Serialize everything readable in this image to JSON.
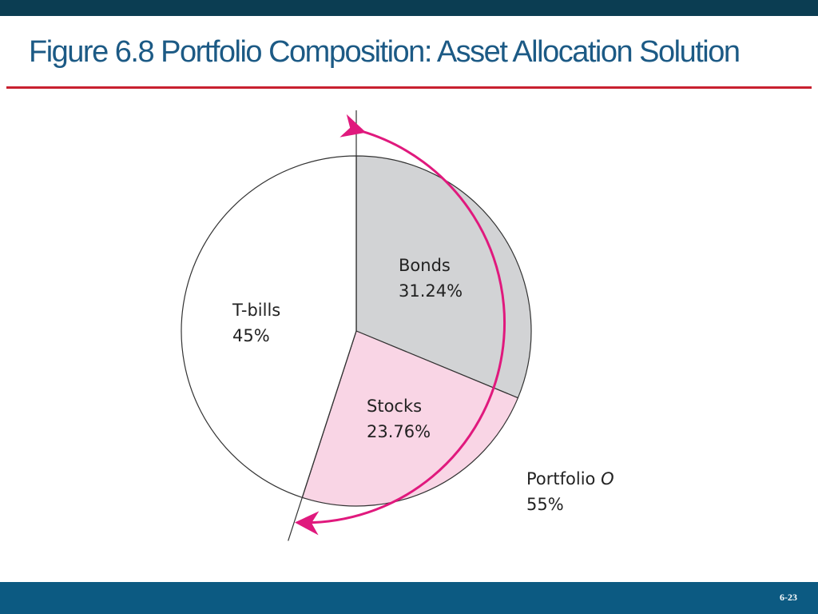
{
  "slide": {
    "title": "Figure 6.8 Portfolio Composition: Asset Allocation Solution",
    "page_number": "6-23"
  },
  "colors": {
    "top_bar": "#0b3d52",
    "bottom_bar": "#0c5a82",
    "title": "#1c5a85",
    "title_rule": "#c8202f",
    "arrow": "#e0197d"
  },
  "chart_data": {
    "type": "pie",
    "title": "",
    "slices": [
      {
        "label": "Bonds",
        "value": 31.24,
        "value_label": "31.24%",
        "color": "#d2d3d5"
      },
      {
        "label": "Stocks",
        "value": 23.76,
        "value_label": "23.76%",
        "color": "#f9d5e5"
      },
      {
        "label": "T-bills",
        "value": 45,
        "value_label": "45%",
        "color": "#ffffff"
      }
    ],
    "annotation": {
      "label": "Portfolio",
      "label_italic": "O",
      "value_label": "55%",
      "covers": [
        "Bonds",
        "Stocks"
      ],
      "value": 55
    }
  }
}
